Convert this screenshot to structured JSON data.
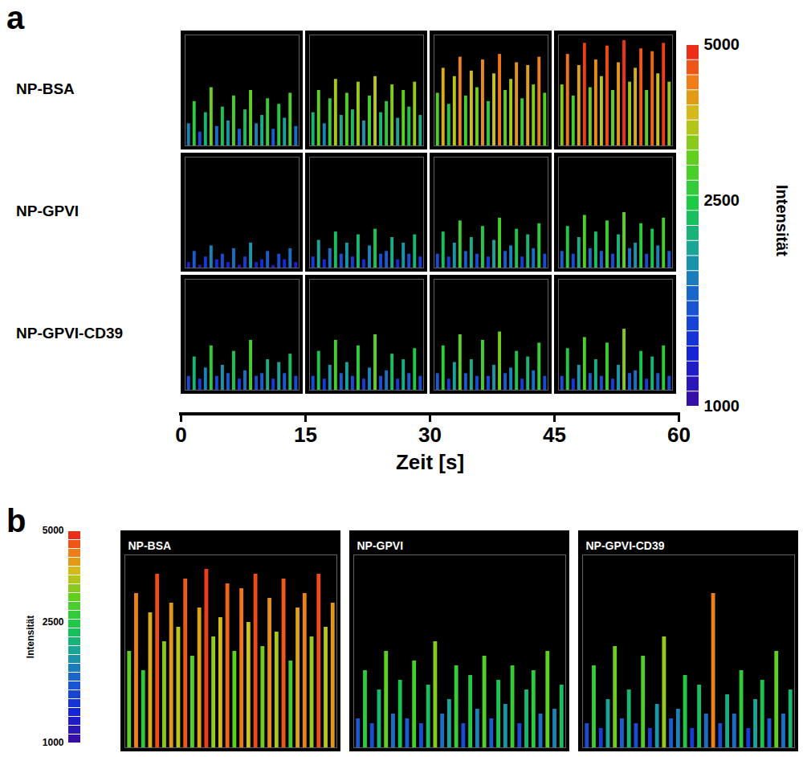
{
  "chart_data": [
    {
      "panel": "a",
      "type": "spike_grid",
      "rows": [
        {
          "name": "NP-BSA",
          "frames": [
            [
              1800,
              2600,
              1500,
              2200,
              3100,
              1700,
              2400,
              1900,
              2800,
              1600,
              2300,
              3000,
              1800,
              2100,
              2700,
              1600,
              2500,
              2000,
              2900,
              1700
            ],
            [
              2200,
              3000,
              1800,
              2700,
              3400,
              2100,
              2900,
              2300,
              3300,
              1900,
              2800,
              3500,
              2200,
              2600,
              3200,
              2000,
              3000,
              2400,
              3300,
              2100
            ],
            [
              2900,
              3800,
              2500,
              3500,
              4200,
              2800,
              3700,
              3100,
              4100,
              2600,
              3600,
              4300,
              3000,
              3400,
              4000,
              2700,
              3900,
              3200,
              4200,
              2900
            ],
            [
              3200,
              4300,
              2800,
              3900,
              4700,
              3100,
              4100,
              3500,
              4600,
              3000,
              4000,
              4800,
              3300,
              3800,
              4500,
              3000,
              4400,
              3600,
              4700,
              3300
            ]
          ]
        },
        {
          "name": "NP-GPVI",
          "frames": [
            [
              1200,
              1600,
              1100,
              1400,
              1800,
              1300,
              1500,
              1200,
              1700,
              1100,
              1400,
              1900,
              1200,
              1300,
              1600,
              1100,
              1500,
              1300,
              1700,
              1200
            ],
            [
              1400,
              2000,
              1300,
              1700,
              2300,
              1500,
              1900,
              1400,
              2200,
              1300,
              1800,
              2400,
              1500,
              1600,
              2100,
              1300,
              1900,
              1500,
              2200,
              1400
            ],
            [
              1500,
              2300,
              1400,
              1900,
              2700,
              1600,
              2100,
              1500,
              2500,
              1400,
              2000,
              2800,
              1600,
              1800,
              2400,
              1400,
              2200,
              1700,
              2600,
              1500
            ],
            [
              1600,
              2500,
              1500,
              2100,
              2900,
              1700,
              2300,
              1600,
              2700,
              1500,
              2200,
              3000,
              1700,
              1900,
              2600,
              1500,
              2400,
              1800,
              2800,
              1600
            ]
          ]
        },
        {
          "name": "NP-GPVI-CD39",
          "frames": [
            [
              1500,
              2200,
              1400,
              1800,
              2600,
              1500,
              1900,
              1600,
              2400,
              1400,
              1700,
              2800,
              1500,
              1600,
              2100,
              1400,
              2000,
              1600,
              2300,
              1500
            ],
            [
              1500,
              2400,
              1400,
              1900,
              2800,
              1600,
              2000,
              1500,
              2600,
              1400,
              1800,
              3000,
              1500,
              1700,
              2300,
              1400,
              2100,
              1600,
              2500,
              1500
            ],
            [
              1600,
              2600,
              1400,
              2000,
              3000,
              1600,
              2100,
              1500,
              2800,
              1500,
              1900,
              3100,
              1600,
              1800,
              2400,
              1400,
              2200,
              1700,
              2700,
              1500
            ],
            [
              1500,
              2500,
              1400,
              1900,
              2900,
              1600,
              2100,
              1500,
              2700,
              1400,
              1900,
              3200,
              1600,
              1700,
              2400,
              1400,
              2200,
              1600,
              2600,
              1500
            ]
          ]
        }
      ],
      "xlabel": "Zeit [s]",
      "xlim": [
        0,
        60
      ],
      "xticks": [
        0,
        15,
        30,
        45,
        60
      ],
      "ylim": [
        1000,
        5000
      ],
      "colorbar": {
        "label": "Intensität",
        "range": [
          1000,
          5000
        ],
        "ticks": [
          1000,
          2500,
          5000
        ],
        "log": true
      }
    },
    {
      "panel": "b",
      "type": "spike_row",
      "panels": [
        {
          "title": "NP-BSA",
          "values": [
            3000,
            4200,
            2600,
            3800,
            4600,
            3200,
            4000,
            3500,
            4500,
            2900,
            3900,
            4700,
            3300,
            3700,
            4400,
            3000,
            4300,
            3600,
            4600,
            3100,
            4100,
            3400,
            4500,
            2800,
            3900,
            4200,
            3300,
            4600,
            3500,
            4000
          ]
        },
        {
          "title": "NP-GPVI",
          "values": [
            1600,
            2600,
            1500,
            2200,
            3000,
            1700,
            2400,
            1600,
            2800,
            1500,
            2300,
            3200,
            1700,
            2000,
            2700,
            1500,
            2500,
            1800,
            2900,
            1600,
            2400,
            1900,
            2700,
            1500,
            2200,
            2600,
            1700,
            3000,
            1800,
            2300
          ]
        },
        {
          "title": "NP-GPVI-CD39",
          "values": [
            1500,
            2700,
            1400,
            2000,
            3100,
            1600,
            2200,
            1500,
            2900,
            1400,
            1900,
            3300,
            1600,
            1800,
            2500,
            1400,
            2300,
            1700,
            4200,
            1500,
            2100,
            1700,
            2600,
            1400,
            2000,
            2400,
            1600,
            3000,
            1700,
            2200
          ]
        }
      ],
      "ylim": [
        1000,
        5000
      ],
      "colorbar": {
        "label": "Intensität",
        "range": [
          1000,
          5000
        ],
        "ticks": [
          1000,
          2500,
          5000
        ],
        "log": true
      }
    }
  ]
}
